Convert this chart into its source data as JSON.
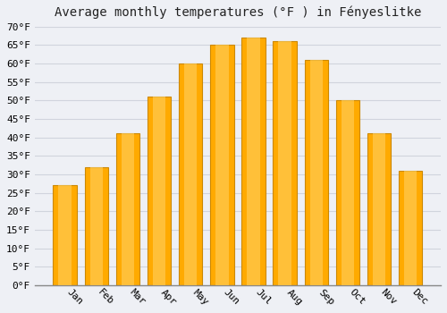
{
  "title": "Average monthly temperatures (°F ) in Fényeslitke",
  "months": [
    "Jan",
    "Feb",
    "Mar",
    "Apr",
    "May",
    "Jun",
    "Jul",
    "Aug",
    "Sep",
    "Oct",
    "Nov",
    "Dec"
  ],
  "values": [
    27,
    32,
    41,
    51,
    60,
    65,
    67,
    66,
    61,
    50,
    41,
    31
  ],
  "bar_color_face": "#FFAA00",
  "bar_color_edge": "#CC8800",
  "bar_color_light": "#FFD060",
  "background_color": "#eef0f5",
  "plot_bg_color": "#eef0f5",
  "grid_color": "#d0d4dd",
  "ylim": [
    0,
    70
  ],
  "yticks": [
    0,
    5,
    10,
    15,
    20,
    25,
    30,
    35,
    40,
    45,
    50,
    55,
    60,
    65,
    70
  ],
  "title_fontsize": 10,
  "tick_fontsize": 8,
  "font_family": "monospace"
}
